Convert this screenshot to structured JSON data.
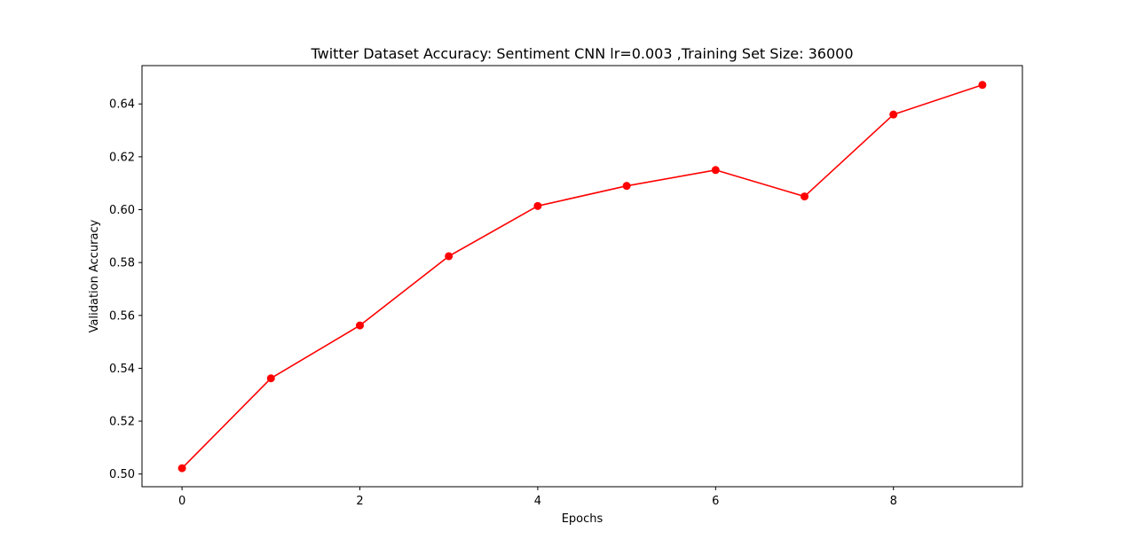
{
  "chart_data": {
    "type": "line",
    "title": "Twitter Dataset Accuracy: Sentiment CNN lr=0.003 ,Training Set Size: 36000",
    "xlabel": "Epochs",
    "ylabel": "Validation Accuracy",
    "x": [
      0,
      1,
      2,
      3,
      4,
      5,
      6,
      7,
      8,
      9
    ],
    "series": [
      {
        "color": "#ff0000",
        "marker": "circle",
        "values": [
          0.5022,
          0.5362,
          0.5562,
          0.5824,
          0.6014,
          0.609,
          0.615,
          0.605,
          0.636,
          0.6472
        ]
      }
    ],
    "xlim": [
      -0.45,
      9.45
    ],
    "ylim": [
      0.4952,
      0.6545
    ],
    "xticks": [
      0,
      2,
      4,
      6,
      8
    ],
    "xtick_labels": [
      "0",
      "2",
      "4",
      "6",
      "8"
    ],
    "yticks": [
      0.5,
      0.52,
      0.54,
      0.56,
      0.58,
      0.6,
      0.62,
      0.64
    ],
    "ytick_labels": [
      "0.50",
      "0.52",
      "0.54",
      "0.56",
      "0.58",
      "0.60",
      "0.62",
      "0.64"
    ],
    "grid": false,
    "legend": "none"
  }
}
